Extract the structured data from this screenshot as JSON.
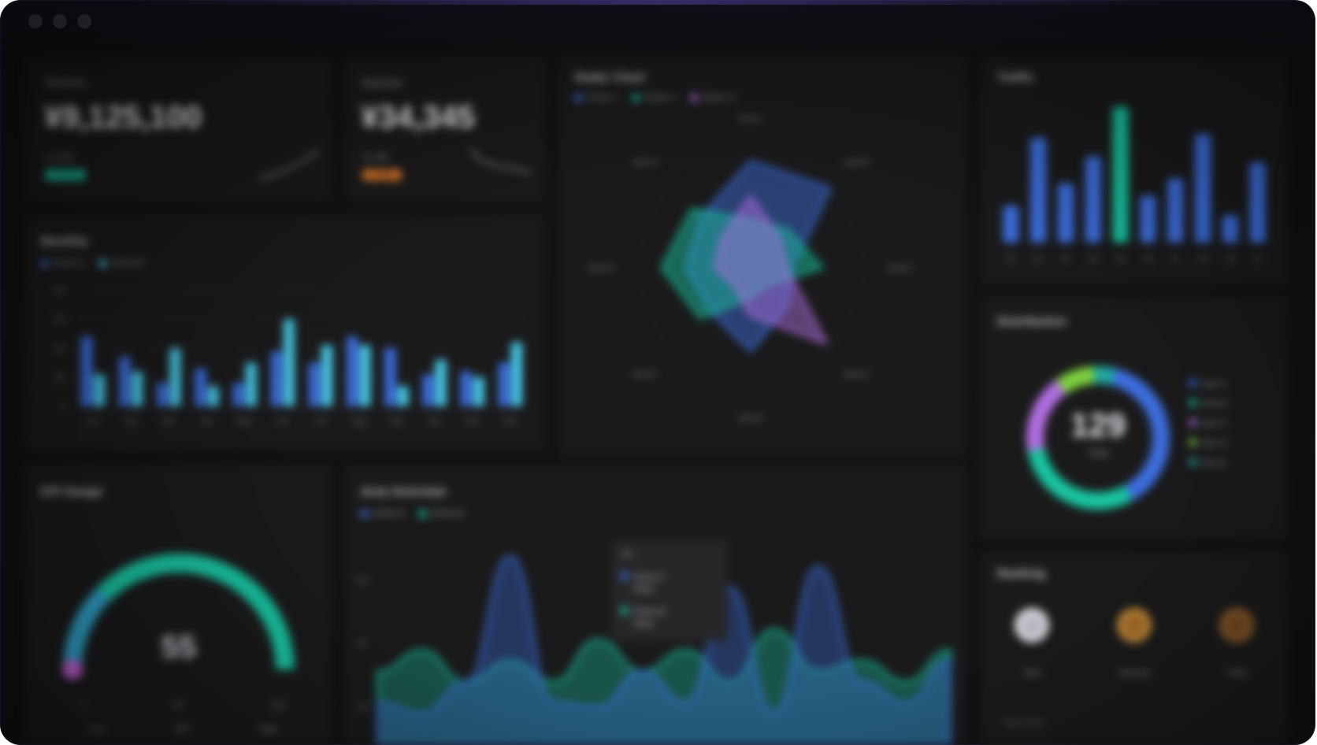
{
  "kpi1": {
    "title": "Revenue",
    "value": "¥9,125,100",
    "delta_label": "vs last",
    "delta": "+12.4%",
    "accent": "#19c3a0"
  },
  "kpi2": {
    "title": "Expense",
    "value": "¥34,345",
    "delta_label": "vs last",
    "delta": "-4.2%",
    "accent": "#e07a2a"
  },
  "grouped": {
    "title": "Monthly",
    "legend": [
      "Series A",
      "Series B"
    ],
    "colors": [
      "#3d6fe0",
      "#48c9e8"
    ],
    "yticks": [
      "400",
      "300",
      "200",
      "100",
      "0"
    ],
    "categories": [
      "Jan",
      "Feb",
      "Mar",
      "Apr",
      "May",
      "Jun",
      "Jul",
      "Aug",
      "Sep",
      "Oct",
      "Nov",
      "Dec"
    ]
  },
  "radar": {
    "title": "Radar Chart",
    "legend": [
      "Series 1",
      "Series 2",
      "Series 3"
    ],
    "colors": [
      "#3d6fe0",
      "#19c3a0",
      "#b06ee0"
    ],
    "axes": [
      "Axis A",
      "Axis B",
      "Axis C",
      "Axis D",
      "Axis E",
      "Axis F",
      "Axis G",
      "Axis H"
    ]
  },
  "topbars": {
    "title": "Traffic",
    "color": "#3d6fe0",
    "highlight": "#19c3a0",
    "categories": [
      "01",
      "02",
      "03",
      "04",
      "05",
      "06",
      "07",
      "08",
      "09",
      "10"
    ]
  },
  "gauge": {
    "title": "KPI Gauge",
    "value": "55",
    "ticks": [
      "0",
      "50",
      "100"
    ],
    "sub_labels": [
      "Low",
      "Mid",
      "High"
    ]
  },
  "area": {
    "title": "Area Overview",
    "legend": [
      "Series A",
      "Series B"
    ],
    "colors": [
      "#3d6fe0",
      "#19c3a0"
    ],
    "yticks": [
      "300",
      "200",
      "100"
    ],
    "tooltip": {
      "title": "Tip",
      "rows": [
        {
          "name": "Series A",
          "value": "Value"
        },
        {
          "name": "Series B",
          "value": "Value"
        }
      ]
    }
  },
  "donut": {
    "title": "Distribution",
    "center_value": "129",
    "center_label": "Total",
    "legend": [
      "Item A",
      "Item B",
      "Item C",
      "Item D",
      "Item E"
    ],
    "colors": [
      "#3d6fe0",
      "#19c3a0",
      "#b06ee0",
      "#7dd040",
      "#1fa8a0"
    ]
  },
  "ranking": {
    "title": "Ranking",
    "items": [
      {
        "name": "First",
        "color": "#d9d9df"
      },
      {
        "name": "Second",
        "color": "#c48a3a"
      },
      {
        "name": "Third",
        "color": "#8a5a2a"
      }
    ],
    "footer": "View more"
  },
  "chart_data": [
    {
      "type": "bar",
      "title": "Monthly",
      "categories": [
        "Jan",
        "Feb",
        "Mar",
        "Apr",
        "May",
        "Jun",
        "Jul",
        "Aug",
        "Sep",
        "Oct",
        "Nov",
        "Dec"
      ],
      "series": [
        {
          "name": "Series A",
          "values": [
            240,
            170,
            80,
            130,
            80,
            190,
            150,
            240,
            200,
            110,
            120,
            150
          ]
        },
        {
          "name": "Series B",
          "values": [
            110,
            120,
            200,
            70,
            150,
            300,
            210,
            210,
            70,
            160,
            100,
            220
          ]
        }
      ],
      "ylim": [
        0,
        400
      ]
    },
    {
      "type": "radar",
      "title": "Radar Chart",
      "axes": [
        "Axis A",
        "Axis B",
        "Axis C",
        "Axis D",
        "Axis E",
        "Axis F",
        "Axis G",
        "Axis H"
      ],
      "series": [
        {
          "name": "Series 1",
          "values": [
            0.9,
            0.95,
            0.35,
            0.45,
            0.7,
            0.5,
            0.55,
            0.6
          ]
        },
        {
          "name": "Series 2",
          "values": [
            0.4,
            0.45,
            0.6,
            0.2,
            0.25,
            0.6,
            0.75,
            0.7
          ]
        },
        {
          "name": "Series 3",
          "values": [
            0.6,
            0.35,
            0.3,
            0.9,
            0.4,
            0.2,
            0.3,
            0.35
          ]
        }
      ],
      "ylim": [
        0,
        1
      ]
    },
    {
      "type": "bar",
      "title": "Traffic",
      "categories": [
        "01",
        "02",
        "03",
        "04",
        "05",
        "06",
        "07",
        "08",
        "09",
        "10"
      ],
      "values": [
        30,
        85,
        48,
        70,
        110,
        38,
        52,
        88,
        22,
        65
      ],
      "ylim": [
        0,
        120
      ]
    },
    {
      "type": "area",
      "title": "Area Overview",
      "series": [
        {
          "name": "Series A",
          "values": [
            20,
            15,
            30,
            90,
            20,
            18,
            35,
            20,
            75,
            15,
            85,
            30,
            20,
            40
          ]
        },
        {
          "name": "Series B",
          "values": [
            35,
            45,
            30,
            40,
            30,
            50,
            35,
            45,
            30,
            55,
            35,
            40,
            30,
            45
          ]
        }
      ],
      "ylim": [
        0,
        100
      ]
    },
    {
      "type": "pie",
      "title": "Distribution",
      "categories": [
        "Item A",
        "Item B",
        "Item C",
        "Item D",
        "Item E"
      ],
      "values": [
        38,
        30,
        18,
        9,
        5
      ]
    }
  ]
}
